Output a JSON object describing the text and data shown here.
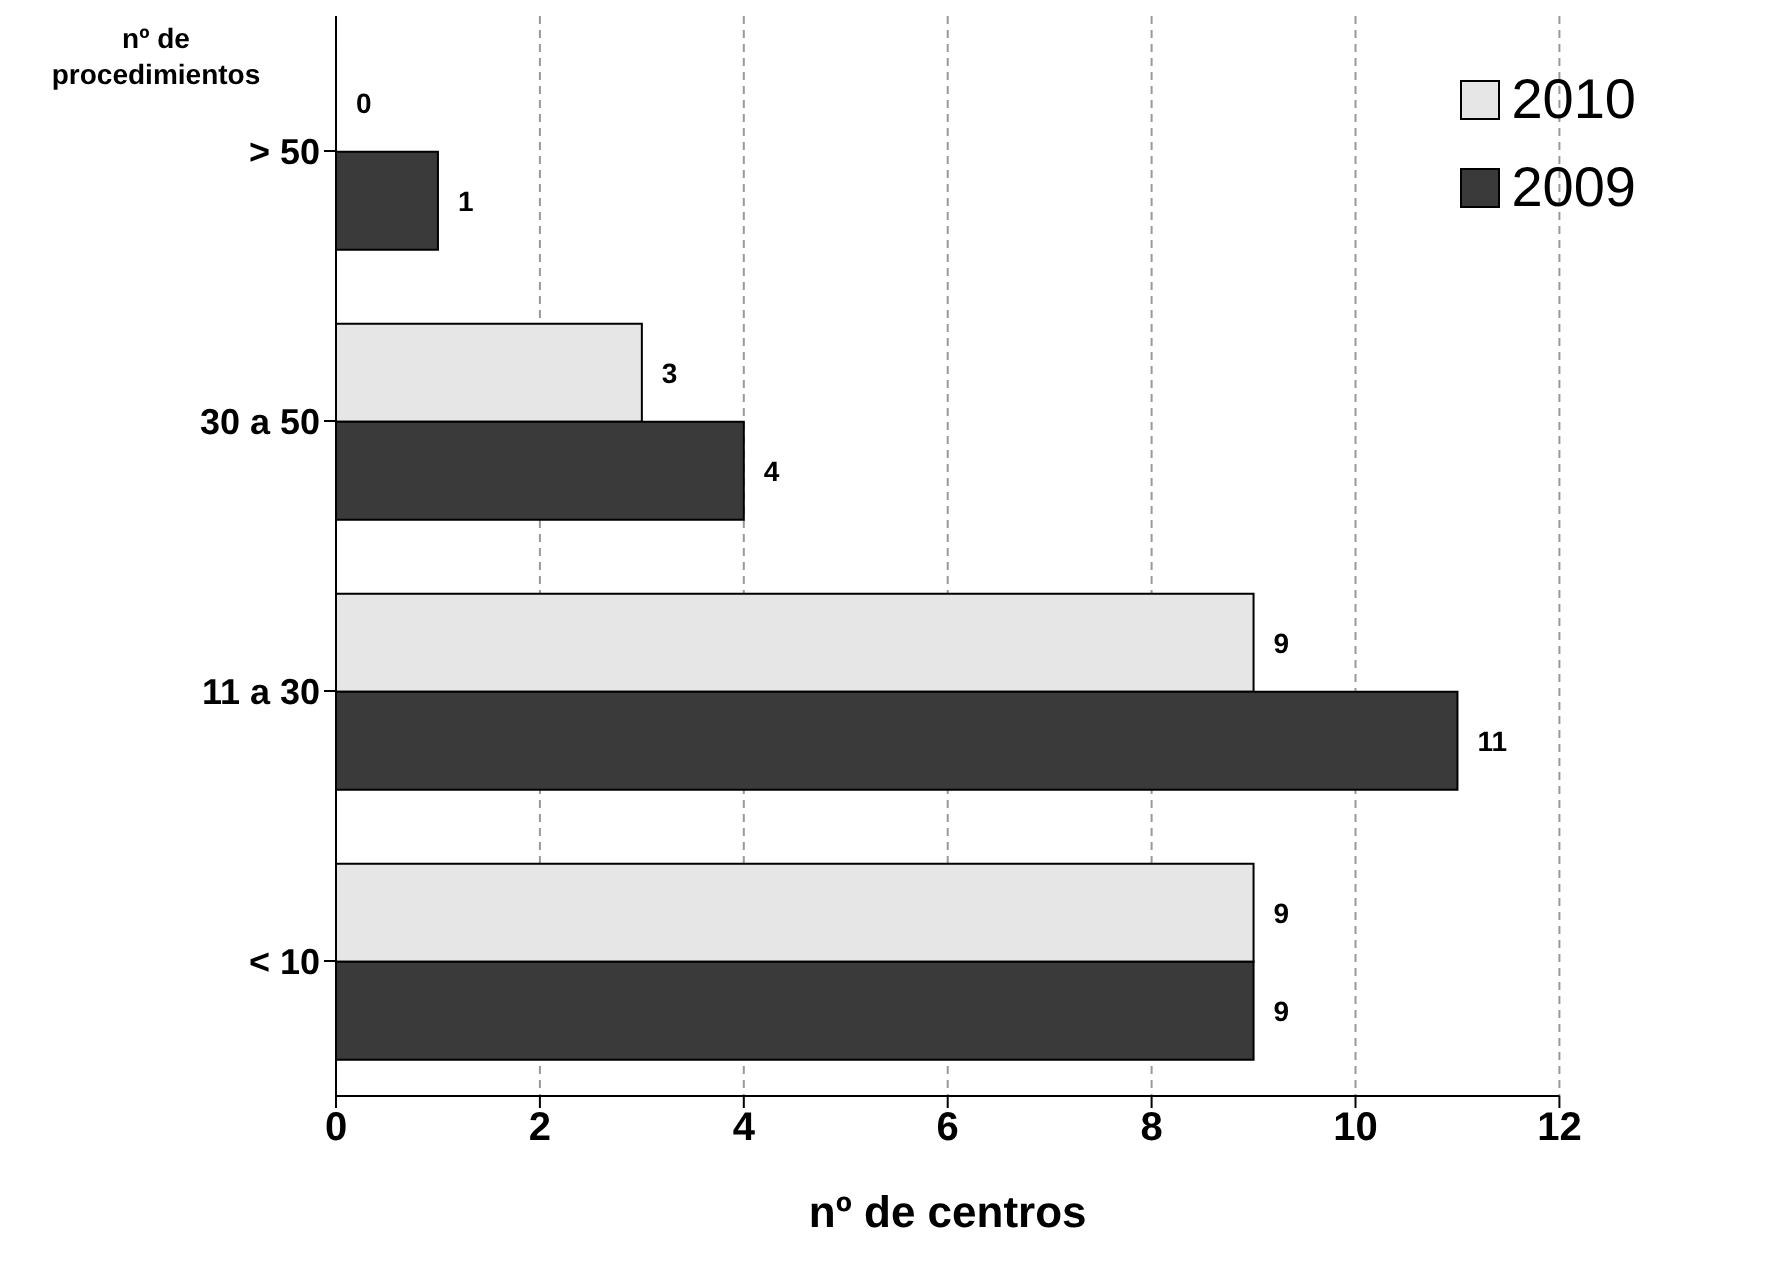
{
  "chart_data": {
    "type": "bar",
    "orientation": "horizontal",
    "ylabel": "nº de procedimientos",
    "xlabel": "nº de centros",
    "categories": [
      "> 50",
      "30 a 50",
      "11 a 30",
      "< 10"
    ],
    "series": [
      {
        "name": "2010",
        "color": "#e6e6e6",
        "values": [
          0,
          3,
          9,
          9
        ]
      },
      {
        "name": "2009",
        "color": "#3a3a3a",
        "values": [
          1,
          4,
          11,
          9
        ]
      }
    ],
    "xlim": [
      0,
      12
    ],
    "xticks": [
      0,
      2,
      4,
      6,
      8,
      10,
      12
    ],
    "grid": "x",
    "legend": "top right",
    "data_labels": true
  }
}
